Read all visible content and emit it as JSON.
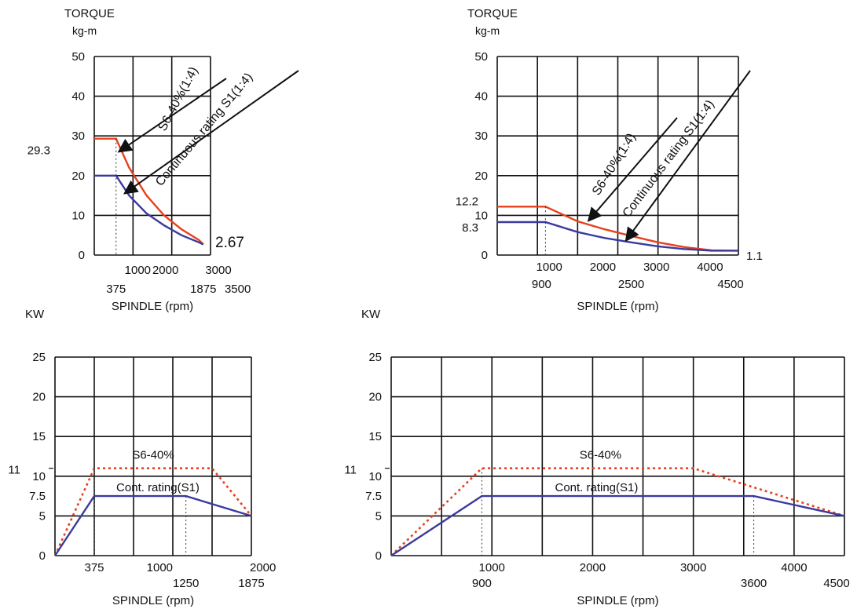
{
  "colors": {
    "s6": "#e8401c",
    "s1": "#3a3aa0",
    "grid": "#111111",
    "ink": "#111111",
    "background": "#ffffff"
  },
  "chart_data": [
    {
      "id": "torque_low",
      "type": "line",
      "title": "",
      "ylabel_line1": "TORQUE",
      "ylabel_line2": "kg-m",
      "xlabel": "SPINDLE (rpm)",
      "xlim": [
        0,
        2000
      ],
      "ylim": [
        0,
        50
      ],
      "grid": true,
      "y_ticks": [
        0,
        10,
        20,
        30,
        40,
        50
      ],
      "x_tick_labels_row1": [
        "1000",
        "2000",
        "3000"
      ],
      "x_tick_labels_row2": [
        "375",
        "1875",
        "3500"
      ],
      "annotations": [
        "29.3",
        "2.67"
      ],
      "callouts": [
        "S6-40%(1:4)",
        "Continuous rating S1(1:4)"
      ],
      "series": [
        {
          "key": "s6",
          "values": [
            [
              0,
              29.3
            ],
            [
              375,
              29.3
            ],
            [
              600,
              22
            ],
            [
              900,
              15
            ],
            [
              1200,
              10
            ],
            [
              1500,
              6.5
            ],
            [
              1800,
              3.8
            ],
            [
              1875,
              2.67
            ]
          ]
        },
        {
          "key": "s1",
          "values": [
            [
              0,
              20
            ],
            [
              375,
              20
            ],
            [
              600,
              15
            ],
            [
              900,
              10.5
            ],
            [
              1200,
              7.5
            ],
            [
              1500,
              5
            ],
            [
              1800,
              3.2
            ],
            [
              1875,
              2.67
            ]
          ]
        }
      ]
    },
    {
      "id": "torque_high",
      "type": "line",
      "title": "",
      "ylabel_line1": "TORQUE",
      "ylabel_line2": "kg-m",
      "xlabel": "SPINDLE (rpm)",
      "xlim": [
        0,
        4500
      ],
      "ylim": [
        0,
        50
      ],
      "grid": true,
      "y_ticks": [
        0,
        10,
        20,
        30,
        40,
        50
      ],
      "x_tick_labels_row1": [
        "1000",
        "2000",
        "3000",
        "4000"
      ],
      "x_tick_labels_row2": [
        "900",
        "2500",
        "4500"
      ],
      "annotations": [
        "12.2",
        "8.3",
        "1.1"
      ],
      "callouts": [
        "S6-40%(1:4)",
        "Continuous rating S1(1:4)"
      ],
      "series": [
        {
          "key": "s6",
          "values": [
            [
              0,
              12.2
            ],
            [
              900,
              12.2
            ],
            [
              1500,
              8.5
            ],
            [
              2000,
              6.5
            ],
            [
              2500,
              4.8
            ],
            [
              3000,
              3.2
            ],
            [
              3500,
              2
            ],
            [
              4000,
              1.2
            ],
            [
              4500,
              1.1
            ]
          ]
        },
        {
          "key": "s1",
          "values": [
            [
              0,
              8.3
            ],
            [
              900,
              8.3
            ],
            [
              1500,
              5.8
            ],
            [
              2000,
              4.3
            ],
            [
              2500,
              3.2
            ],
            [
              3000,
              2.2
            ],
            [
              3500,
              1.5
            ],
            [
              4000,
              1.1
            ],
            [
              4500,
              1.1
            ]
          ]
        }
      ]
    },
    {
      "id": "power_low",
      "type": "line",
      "title": "",
      "ylabel_line1": "KW",
      "ylabel_line2": "",
      "xlabel": "SPINDLE (rpm)",
      "xlim": [
        0,
        1875
      ],
      "ylim": [
        0,
        25
      ],
      "grid": true,
      "y_ticks": [
        0,
        5,
        10,
        15,
        20,
        25
      ],
      "extra_y_labels": [
        "11",
        "7.5"
      ],
      "x_tick_labels_row1": [
        "375",
        "1000",
        "2000"
      ],
      "x_tick_labels_row2": [
        "1250",
        "1875"
      ],
      "series_labels": [
        "S6-40%",
        "Cont. rating(S1)"
      ],
      "series": [
        {
          "key": "s6",
          "values": [
            [
              0,
              0
            ],
            [
              375,
              11
            ],
            [
              1500,
              11
            ],
            [
              1875,
              5
            ]
          ]
        },
        {
          "key": "s1",
          "values": [
            [
              0,
              0
            ],
            [
              375,
              7.5
            ],
            [
              1250,
              7.5
            ],
            [
              1875,
              5
            ]
          ]
        }
      ]
    },
    {
      "id": "power_high",
      "type": "line",
      "title": "",
      "ylabel_line1": "KW",
      "ylabel_line2": "",
      "xlabel": "SPINDLE (rpm)",
      "xlim": [
        0,
        4500
      ],
      "ylim": [
        0,
        25
      ],
      "grid": true,
      "y_ticks": [
        0,
        5,
        10,
        15,
        20,
        25
      ],
      "extra_y_labels": [
        "11",
        "7.5"
      ],
      "x_tick_labels_row1": [
        "1000",
        "2000",
        "3000",
        "4000"
      ],
      "x_tick_labels_row2": [
        "900",
        "3600",
        "4500"
      ],
      "series_labels": [
        "S6-40%",
        "Cont. rating(S1)"
      ],
      "series": [
        {
          "key": "s6",
          "values": [
            [
              0,
              0
            ],
            [
              900,
              11
            ],
            [
              3000,
              11
            ],
            [
              4500,
              5
            ]
          ]
        },
        {
          "key": "s1",
          "values": [
            [
              0,
              0
            ],
            [
              900,
              7.5
            ],
            [
              3600,
              7.5
            ],
            [
              4500,
              5
            ]
          ]
        }
      ]
    }
  ]
}
